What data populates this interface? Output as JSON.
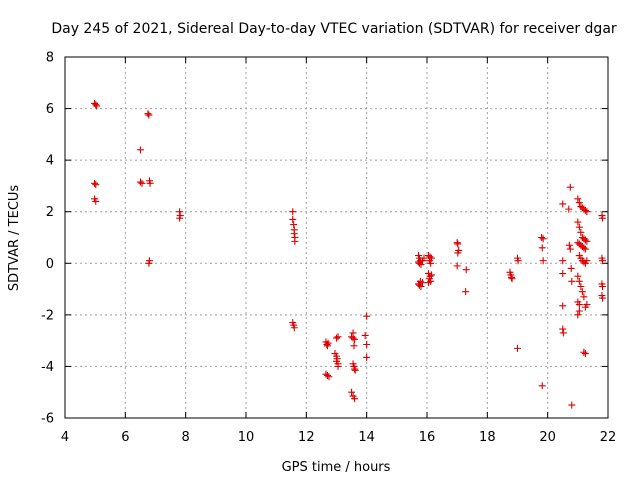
{
  "chart_data": {
    "type": "scatter",
    "title": "Day 245 of 2021, Sidereal Day-to-day VTEC variation (SDTVAR) for receiver dgar",
    "xlabel": "GPS time / hours",
    "ylabel": "SDTVAR / TECUs",
    "xlim": [
      4,
      22
    ],
    "ylim": [
      -6,
      8
    ],
    "xticks": [
      "4",
      "6",
      "8",
      "10",
      "12",
      "14",
      "16",
      "18",
      "20",
      "22"
    ],
    "yticks": [
      "-6",
      "-4",
      "-2",
      "0",
      "2",
      "4",
      "6",
      "8"
    ],
    "grid": true,
    "marker": "plus",
    "marker_color": "#dd0000",
    "series": [
      {
        "name": "dgar",
        "points": [
          [
            4.98,
            6.2
          ],
          [
            5.02,
            6.15
          ],
          [
            5.05,
            6.1
          ],
          [
            4.98,
            3.1
          ],
          [
            5.02,
            3.05
          ],
          [
            4.98,
            2.5
          ],
          [
            5.02,
            2.4
          ],
          [
            6.5,
            4.4
          ],
          [
            6.5,
            3.15
          ],
          [
            6.55,
            3.1
          ],
          [
            6.8,
            3.2
          ],
          [
            6.82,
            3.1
          ],
          [
            6.75,
            5.8
          ],
          [
            6.78,
            5.75
          ],
          [
            6.8,
            0.1
          ],
          [
            6.78,
            0.0
          ],
          [
            7.8,
            2.0
          ],
          [
            7.82,
            1.85
          ],
          [
            7.8,
            1.75
          ],
          [
            11.55,
            2.0
          ],
          [
            11.55,
            1.7
          ],
          [
            11.58,
            1.5
          ],
          [
            11.6,
            1.3
          ],
          [
            11.6,
            1.15
          ],
          [
            11.62,
            1.0
          ],
          [
            11.62,
            0.85
          ],
          [
            11.55,
            -2.3
          ],
          [
            11.58,
            -2.4
          ],
          [
            11.6,
            -2.5
          ],
          [
            12.65,
            -3.05
          ],
          [
            12.68,
            -3.15
          ],
          [
            12.7,
            -3.2
          ],
          [
            12.72,
            -3.1
          ],
          [
            12.65,
            -4.3
          ],
          [
            12.7,
            -4.35
          ],
          [
            12.75,
            -4.4
          ],
          [
            13.0,
            -2.9
          ],
          [
            13.05,
            -2.85
          ],
          [
            12.95,
            -3.5
          ],
          [
            13.0,
            -3.6
          ],
          [
            13.02,
            -3.7
          ],
          [
            13.0,
            -3.8
          ],
          [
            13.05,
            -3.9
          ],
          [
            13.05,
            -4.0
          ],
          [
            13.5,
            -2.85
          ],
          [
            13.55,
            -2.9
          ],
          [
            13.6,
            -2.95
          ],
          [
            13.55,
            -2.7
          ],
          [
            13.58,
            -3.2
          ],
          [
            13.55,
            -3.9
          ],
          [
            13.58,
            -4.0
          ],
          [
            13.6,
            -4.1
          ],
          [
            13.62,
            -4.15
          ],
          [
            13.5,
            -5.0
          ],
          [
            13.55,
            -5.15
          ],
          [
            13.6,
            -5.25
          ],
          [
            14.0,
            -2.05
          ],
          [
            13.95,
            -2.8
          ],
          [
            14.0,
            -3.15
          ],
          [
            14.0,
            -3.65
          ],
          [
            15.72,
            0.3
          ],
          [
            15.75,
            0.2
          ],
          [
            15.78,
            0.1
          ],
          [
            15.72,
            0.05
          ],
          [
            15.75,
            0.0
          ],
          [
            15.8,
            -0.05
          ],
          [
            15.85,
            0.1
          ],
          [
            15.9,
            0.2
          ],
          [
            15.72,
            -0.8
          ],
          [
            15.75,
            -0.85
          ],
          [
            15.8,
            -0.9
          ],
          [
            15.78,
            -0.7
          ],
          [
            15.85,
            -0.75
          ],
          [
            16.05,
            0.3
          ],
          [
            16.1,
            0.25
          ],
          [
            16.15,
            0.2
          ],
          [
            16.08,
            0.1
          ],
          [
            16.12,
            0.0
          ],
          [
            16.05,
            -0.4
          ],
          [
            16.1,
            -0.5
          ],
          [
            16.08,
            -0.6
          ],
          [
            16.12,
            -0.7
          ],
          [
            16.15,
            -0.45
          ],
          [
            16.05,
            -0.75
          ],
          [
            17.0,
            0.8
          ],
          [
            17.02,
            0.75
          ],
          [
            17.05,
            0.5
          ],
          [
            17.02,
            0.4
          ],
          [
            17.0,
            -0.1
          ],
          [
            17.3,
            -0.25
          ],
          [
            17.28,
            -1.1
          ],
          [
            18.75,
            -0.35
          ],
          [
            18.78,
            -0.45
          ],
          [
            18.8,
            -0.55
          ],
          [
            18.82,
            -0.6
          ],
          [
            19.0,
            0.2
          ],
          [
            19.02,
            0.1
          ],
          [
            19.0,
            -3.3
          ],
          [
            19.8,
            1.0
          ],
          [
            19.85,
            0.95
          ],
          [
            19.82,
            0.6
          ],
          [
            19.85,
            0.1
          ],
          [
            19.82,
            -4.75
          ],
          [
            20.5,
            2.3
          ],
          [
            20.75,
            2.95
          ],
          [
            20.7,
            2.1
          ],
          [
            20.5,
            0.1
          ],
          [
            20.5,
            -0.4
          ],
          [
            20.72,
            0.7
          ],
          [
            20.75,
            0.55
          ],
          [
            20.78,
            -0.2
          ],
          [
            20.8,
            -0.7
          ],
          [
            20.5,
            -1.65
          ],
          [
            20.5,
            -2.55
          ],
          [
            20.52,
            -2.7
          ],
          [
            20.8,
            -5.5
          ],
          [
            21.0,
            2.5
          ],
          [
            21.05,
            2.35
          ],
          [
            21.1,
            2.2
          ],
          [
            21.15,
            2.15
          ],
          [
            21.2,
            2.1
          ],
          [
            21.25,
            2.05
          ],
          [
            21.3,
            2.0
          ],
          [
            21.0,
            1.6
          ],
          [
            21.05,
            1.4
          ],
          [
            21.1,
            1.2
          ],
          [
            21.15,
            1.0
          ],
          [
            21.2,
            0.95
          ],
          [
            21.25,
            0.9
          ],
          [
            21.3,
            0.85
          ],
          [
            21.0,
            0.8
          ],
          [
            21.05,
            0.75
          ],
          [
            21.1,
            0.7
          ],
          [
            21.15,
            0.65
          ],
          [
            21.2,
            0.6
          ],
          [
            21.25,
            0.55
          ],
          [
            21.05,
            0.3
          ],
          [
            21.1,
            0.2
          ],
          [
            21.15,
            0.1
          ],
          [
            21.2,
            0.05
          ],
          [
            21.25,
            0.0
          ],
          [
            21.3,
            0.1
          ],
          [
            21.0,
            -0.5
          ],
          [
            21.05,
            -0.7
          ],
          [
            21.1,
            -0.9
          ],
          [
            21.15,
            -1.1
          ],
          [
            21.2,
            -1.3
          ],
          [
            21.0,
            -1.5
          ],
          [
            21.05,
            -1.6
          ],
          [
            21.25,
            -1.7
          ],
          [
            21.3,
            -1.6
          ],
          [
            21.0,
            -2.0
          ],
          [
            21.05,
            -1.85
          ],
          [
            21.2,
            -3.45
          ],
          [
            21.25,
            -3.5
          ],
          [
            21.8,
            1.85
          ],
          [
            21.82,
            1.75
          ],
          [
            21.8,
            0.2
          ],
          [
            21.82,
            0.1
          ],
          [
            21.8,
            -0.8
          ],
          [
            21.82,
            -0.9
          ],
          [
            21.8,
            -1.25
          ],
          [
            21.82,
            -1.35
          ]
        ]
      }
    ]
  }
}
